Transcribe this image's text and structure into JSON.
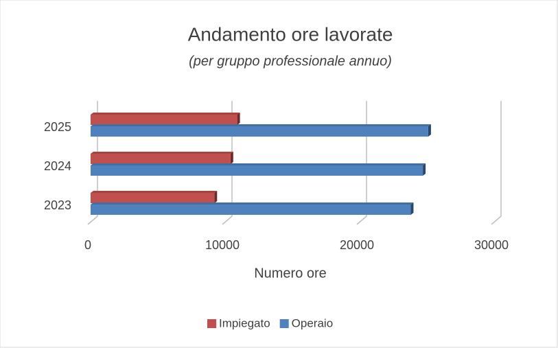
{
  "chart_data": {
    "type": "bar",
    "orientation": "horizontal",
    "title": "Andamento ore lavorate",
    "subtitle": "(per gruppo professionale annuo)",
    "categories": [
      "2023",
      "2024",
      "2025"
    ],
    "series": [
      {
        "name": "Impiegato",
        "color": "#c0504d",
        "values": [
          9300,
          10500,
          11000
        ]
      },
      {
        "name": "Operaio",
        "color": "#4f81bd",
        "values": [
          23900,
          24800,
          25200
        ]
      }
    ],
    "xlabel": "Numero ore",
    "xlim": [
      0,
      30000
    ],
    "xticks": [
      0,
      10000,
      20000,
      30000
    ],
    "grid": true,
    "legend": "bottom"
  }
}
